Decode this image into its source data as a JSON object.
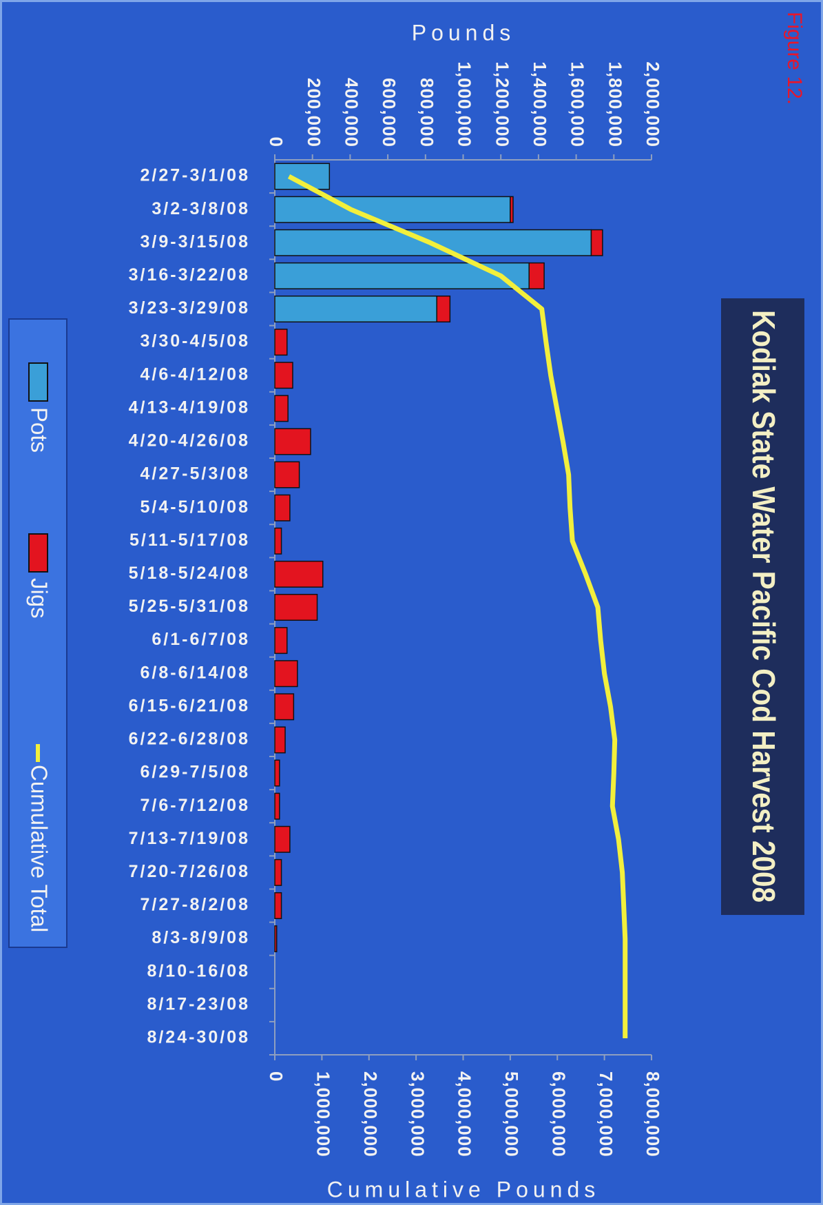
{
  "chart_data": {
    "type": "bar",
    "stacked": true,
    "title": "Kodiak State Water Pacific Cod Harvest 2008",
    "figure_label": "Figure 12.",
    "ylabel": "Pounds",
    "y2label": "Cumulative Pounds",
    "categories": [
      "2/27-3/1/08",
      "3/2-3/8/08",
      "3/9-3/15/08",
      "3/16-3/22/08",
      "3/23-3/29/08",
      "3/30-4/5/08",
      "4/6-4/12/08",
      "4/13-4/19/08",
      "4/20-4/26/08",
      "4/27-5/3/08",
      "5/4-5/10/08",
      "5/11-5/17/08",
      "5/18-5/24/08",
      "5/25-5/31/08",
      "6/1-6/7/08",
      "6/8-6/14/08",
      "6/15-6/21/08",
      "6/22-6/28/08",
      "6/29-7/5/08",
      "7/6-7/12/08",
      "7/13-7/19/08",
      "7/20-7/26/08",
      "7/27-8/2/08",
      "8/3-8/9/08",
      "8/10-16/08",
      "8/17-23/08",
      "8/24-30/08"
    ],
    "series": [
      {
        "name": "Pots",
        "type": "bar",
        "color": "#3a9fd8",
        "values": [
          290000,
          1250000,
          1680000,
          1350000,
          860000,
          0,
          0,
          0,
          0,
          0,
          0,
          0,
          0,
          0,
          0,
          0,
          0,
          0,
          0,
          0,
          0,
          0,
          0,
          0,
          0,
          0,
          0
        ]
      },
      {
        "name": "Jigs",
        "type": "bar",
        "color": "#e3141f",
        "values": [
          0,
          15000,
          60000,
          80000,
          70000,
          65000,
          95000,
          70000,
          190000,
          130000,
          80000,
          35000,
          255000,
          225000,
          65000,
          120000,
          100000,
          55000,
          25000,
          25000,
          80000,
          35000,
          35000,
          10000,
          0,
          0,
          0
        ]
      },
      {
        "name": "Cumulative Total",
        "type": "line",
        "axis": "y2",
        "color": "#f2ef3c",
        "values": [
          300000,
          1620000,
          3300000,
          4800000,
          5670000,
          5760000,
          5860000,
          5990000,
          6120000,
          6240000,
          6270000,
          6320000,
          6600000,
          6860000,
          6920000,
          7000000,
          7130000,
          7220000,
          7200000,
          7170000,
          7300000,
          7380000,
          7410000,
          7440000,
          7440000,
          7440000,
          7440000
        ]
      }
    ],
    "ylim": [
      0,
      2000000
    ],
    "yticks": [
      0,
      {
        "value": 200000,
        "label": "200,000"
      },
      {
        "value": 400000,
        "label": "400,000"
      },
      {
        "value": 600000,
        "label": "600,000"
      },
      {
        "value": 800000,
        "label": "800,000"
      },
      {
        "value": 1000000,
        "label": "1,000,000"
      },
      {
        "value": 1200000,
        "label": "1,200,000"
      },
      {
        "value": 1400000,
        "label": "1,400,000"
      },
      {
        "value": 1600000,
        "label": "1,600,000"
      },
      {
        "value": 1800000,
        "label": "1,800,000"
      },
      {
        "value": 2000000,
        "label": "2,000,000"
      }
    ],
    "y2lim": [
      0,
      8000000
    ],
    "y2ticks": [
      0,
      {
        "value": 1000000,
        "label": "1,000,000"
      },
      {
        "value": 2000000,
        "label": "2,000,000"
      },
      {
        "value": 3000000,
        "label": "3,000,000"
      },
      {
        "value": 4000000,
        "label": "4,000,000"
      },
      {
        "value": 5000000,
        "label": "5,000,000"
      },
      {
        "value": 6000000,
        "label": "6,000,000"
      },
      {
        "value": 7000000,
        "label": "7,000,000"
      },
      {
        "value": 8000000,
        "label": "8,000,000"
      }
    ],
    "grid": false,
    "legend": "bottom"
  }
}
